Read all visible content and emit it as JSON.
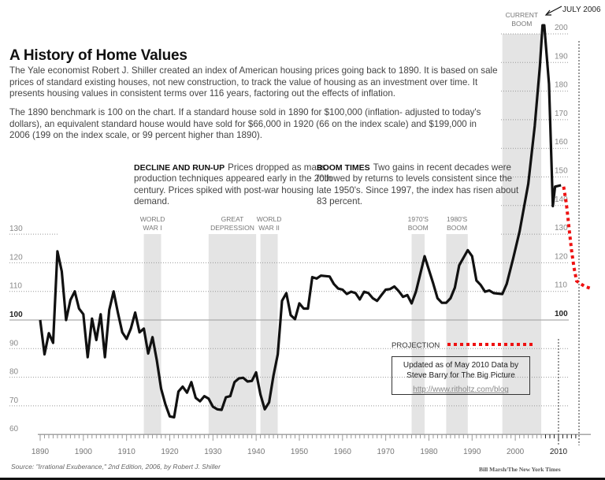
{
  "header": {
    "title": "A History of Home Values",
    "intro_1": "The Yale economist Robert J. Shiller created an index of American housing prices going back to 1890. It is based on sale prices of standard existing houses, not new construction, to track the value of housing as an investment over time. It presents housing values in consistent terms over 116 years, factoring out the effects of inflation.",
    "intro_2": "The 1890 benchmark is 100 on the chart. If a standard house sold in 1890 for $100,000 (inflation- adjusted to today's dollars), an equivalent standard house would have sold for $66,000 in 1920 (66 on the index scale) and $199,000 in 2006 (199 on the index scale, or 99 percent higher than 1890)."
  },
  "notes": [
    {
      "heading": "DECLINE AND RUN-UP",
      "text": "Prices dropped as mass production techniques appeared early in the 20th century. Prices spiked with post-war housing demand."
    },
    {
      "heading": "BOOM TIMES",
      "text": "Two gains in recent decades were followed by returns to levels consistent since the late 1950's. Since 1997, the index has risen about 83 percent."
    }
  ],
  "credit_box": {
    "line1": "Updated as of May 2010 Data by",
    "line2": "Steve Barry for The Big Picture",
    "url": "http://www.ritholtz.com/blog"
  },
  "footer": {
    "source": "Source: \"Irrational Exuberance,\" 2nd Edition, 2006, by Robert J. Shiller",
    "byline": "Bill Marsh/The New York Times"
  },
  "colors": {
    "line": "#111111",
    "projection": "#ee1111",
    "band": "#e4e4e4",
    "grid": "#999999"
  },
  "chart_data": {
    "type": "line",
    "title": "A History of Home Values",
    "xlabel": "",
    "ylabel": "",
    "xlim": [
      1890,
      2014
    ],
    "ylim": [
      60,
      205
    ],
    "x_ticks": [
      1890,
      1900,
      1910,
      1920,
      1930,
      1940,
      1950,
      1960,
      1970,
      1980,
      1990,
      2000,
      2010
    ],
    "y_ticks_left": [
      60,
      70,
      80,
      90,
      100,
      110,
      120,
      130
    ],
    "y_ticks_right": [
      100,
      110,
      120,
      130,
      140,
      150,
      160,
      170,
      180,
      190,
      200
    ],
    "grid": true,
    "bands": [
      {
        "label": [
          "WORLD",
          "WAR I"
        ],
        "start": 1914,
        "end": 1918
      },
      {
        "label": [
          "GREAT",
          "DEPRESSION"
        ],
        "start": 1929,
        "end": 1940
      },
      {
        "label": [
          "WORLD",
          "WAR II"
        ],
        "start": 1941,
        "end": 1945
      },
      {
        "label": [
          "1970'S",
          "BOOM"
        ],
        "start": 1976,
        "end": 1979
      },
      {
        "label": [
          "1980'S",
          "BOOM"
        ],
        "start": 1984,
        "end": 1989
      },
      {
        "label": [
          "CURRENT",
          "BOOM"
        ],
        "start": 1997,
        "end": 2006
      }
    ],
    "annotation": "JULY 2006",
    "projection_label": "PROJECTION",
    "series": [
      {
        "values": [
          [
            1890,
            100
          ],
          [
            1891,
            88
          ],
          [
            1892,
            95.4
          ],
          [
            1893,
            92
          ],
          [
            1894,
            124
          ],
          [
            1895,
            117
          ],
          [
            1896,
            100
          ],
          [
            1897,
            107
          ],
          [
            1898,
            110
          ],
          [
            1899,
            104
          ],
          [
            1900,
            102
          ],
          [
            1901,
            87
          ],
          [
            1902,
            100.5
          ],
          [
            1903,
            93
          ],
          [
            1904,
            102
          ],
          [
            1905,
            87
          ],
          [
            1906,
            103.5
          ],
          [
            1907,
            110
          ],
          [
            1908,
            102.5
          ],
          [
            1909,
            95.7
          ],
          [
            1910,
            93.4
          ],
          [
            1911,
            97
          ],
          [
            1912,
            102.6
          ],
          [
            1913,
            95.7
          ],
          [
            1914,
            97
          ],
          [
            1915,
            88.3
          ],
          [
            1916,
            94
          ],
          [
            1917,
            86
          ],
          [
            1918,
            76
          ],
          [
            1919,
            70.5
          ],
          [
            1920,
            66.3
          ],
          [
            1921,
            66
          ],
          [
            1922,
            75
          ],
          [
            1923,
            76.7
          ],
          [
            1924,
            74.6
          ],
          [
            1925,
            78.3
          ],
          [
            1926,
            72.8
          ],
          [
            1927,
            71.6
          ],
          [
            1928,
            73.4
          ],
          [
            1929,
            72.5
          ],
          [
            1930,
            69.7
          ],
          [
            1931,
            68.8
          ],
          [
            1932,
            68.6
          ],
          [
            1933,
            73
          ],
          [
            1934,
            73.4
          ],
          [
            1935,
            78.3
          ],
          [
            1936,
            79.6
          ],
          [
            1937,
            79.8
          ],
          [
            1938,
            78.5
          ],
          [
            1939,
            78.7
          ],
          [
            1940,
            81.7
          ],
          [
            1941,
            74
          ],
          [
            1942,
            68.8
          ],
          [
            1943,
            71.2
          ],
          [
            1944,
            80.5
          ],
          [
            1945,
            88
          ],
          [
            1946,
            106.7
          ],
          [
            1947,
            109.4
          ],
          [
            1948,
            101.7
          ],
          [
            1949,
            100.3
          ],
          [
            1950,
            105.8
          ],
          [
            1951,
            104
          ],
          [
            1952,
            104
          ],
          [
            1953,
            115
          ],
          [
            1954,
            114.5
          ],
          [
            1955,
            115.5
          ],
          [
            1957,
            115.2
          ],
          [
            1958,
            112.6
          ],
          [
            1959,
            111
          ],
          [
            1960,
            110.6
          ],
          [
            1961,
            109.1
          ],
          [
            1962,
            109.9
          ],
          [
            1963,
            109.4
          ],
          [
            1964,
            107.2
          ],
          [
            1965,
            109.9
          ],
          [
            1966,
            109.4
          ],
          [
            1967,
            107.6
          ],
          [
            1968,
            106.7
          ],
          [
            1969,
            108.7
          ],
          [
            1970,
            110.6
          ],
          [
            1971,
            110.8
          ],
          [
            1972,
            111.7
          ],
          [
            1973,
            110.1
          ],
          [
            1974,
            108.1
          ],
          [
            1975,
            108.7
          ],
          [
            1976,
            105.8
          ],
          [
            1977,
            109.9
          ],
          [
            1979,
            122.3
          ],
          [
            1981,
            112.7
          ],
          [
            1982,
            107.6
          ],
          [
            1983,
            106
          ],
          [
            1984,
            106
          ],
          [
            1985,
            107.6
          ],
          [
            1986,
            111.3
          ],
          [
            1987,
            119.1
          ],
          [
            1989,
            124.4
          ],
          [
            1990,
            122.3
          ],
          [
            1991,
            113.8
          ],
          [
            1992,
            112.2
          ],
          [
            1993,
            109.9
          ],
          [
            1994,
            110.3
          ],
          [
            1995,
            109.4
          ],
          [
            1997,
            109.1
          ],
          [
            1998,
            112.6
          ],
          [
            1999.5,
            121.5
          ],
          [
            2001,
            131
          ],
          [
            2003,
            147.6
          ],
          [
            2004.5,
            167.8
          ],
          [
            2005.7,
            188.9
          ],
          [
            2006.3,
            203
          ],
          [
            2006.7,
            203
          ],
          [
            2007.8,
            182.5
          ],
          [
            2008.7,
            139.8
          ],
          [
            2009.2,
            146.6
          ],
          [
            2010.6,
            147.1
          ]
        ]
      },
      {
        "name": "PROJECTION",
        "values": [
          [
            2011.2,
            146.6
          ],
          [
            2011.8,
            141
          ],
          [
            2012.2,
            135.6
          ],
          [
            2012.6,
            130
          ],
          [
            2013,
            124.6
          ],
          [
            2013.6,
            118.2
          ],
          [
            2014.2,
            113.6
          ],
          [
            2016,
            111.8
          ],
          [
            2017.9,
            110.8
          ]
        ]
      }
    ]
  }
}
